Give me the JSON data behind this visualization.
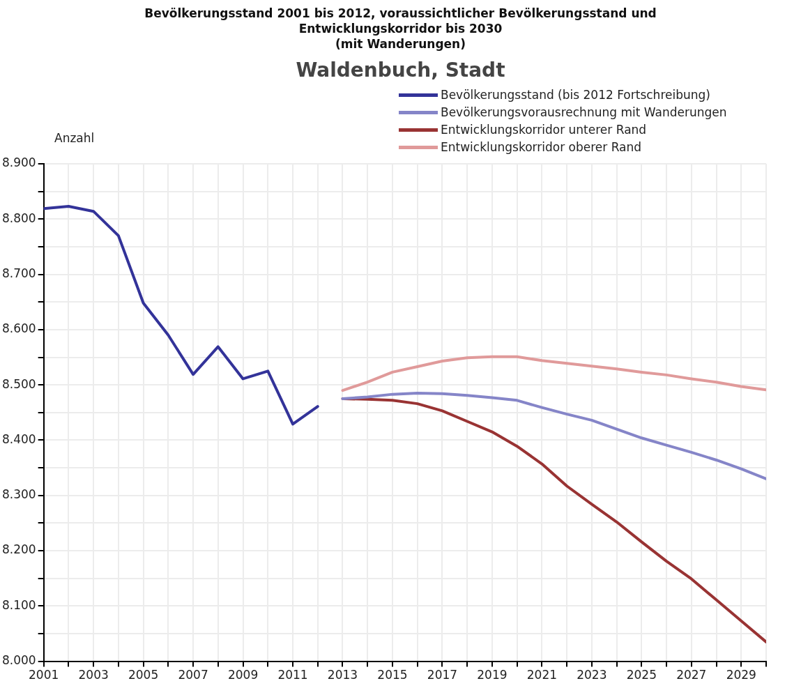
{
  "chart_data": {
    "type": "line",
    "title": "Bevölkerungsstand 2001 bis 2012, voraussichtlicher Bevölkerungsstand und\nEntwicklungskorridor bis 2030\n(mit Wanderungen)",
    "subtitle": "Waldenbuch, Stadt",
    "ylabel": "Anzahl",
    "series": [
      {
        "name": "Bevölkerungsstand (bis 2012 Fortschreibung)",
        "color": "#333399",
        "x": [
          2001,
          2002,
          2003,
          2004,
          2005,
          2006,
          2007,
          2008,
          2009,
          2010,
          2011,
          2012
        ],
        "values": [
          8819,
          8823,
          8814,
          8770,
          8648,
          8590,
          8519,
          8569,
          8511,
          8525,
          8429,
          8461
        ]
      },
      {
        "name": "Bevölkerungsvorausrechnung mit Wanderungen",
        "color": "#8585c8",
        "x": [
          2013,
          2014,
          2015,
          2016,
          2017,
          2018,
          2019,
          2020,
          2021,
          2022,
          2023,
          2024,
          2025,
          2026,
          2027,
          2028,
          2029,
          2030
        ],
        "values": [
          8475,
          8478,
          8483,
          8485,
          8484,
          8481,
          8477,
          8472,
          8459,
          8447,
          8436,
          8420,
          8404,
          8391,
          8378,
          8364,
          8348,
          8330
        ]
      },
      {
        "name": "Entwicklungskorridor unterer Rand",
        "color": "#993333",
        "x": [
          2013,
          2014,
          2015,
          2016,
          2017,
          2018,
          2019,
          2020,
          2021,
          2022,
          2023,
          2024,
          2025,
          2026,
          2027,
          2028,
          2029,
          2030
        ],
        "values": [
          8475,
          8474,
          8472,
          8466,
          8453,
          8434,
          8415,
          8389,
          8357,
          8317,
          8284,
          8252,
          8216,
          8181,
          8149,
          8111,
          8073,
          8035
        ]
      },
      {
        "name": "Entwicklungskorridor oberer Rand",
        "color": "#e09a9a",
        "x": [
          2013,
          2014,
          2015,
          2016,
          2017,
          2018,
          2019,
          2020,
          2021,
          2022,
          2023,
          2024,
          2025,
          2026,
          2027,
          2028,
          2029,
          2030
        ],
        "values": [
          8490,
          8505,
          8523,
          8533,
          8543,
          8549,
          8551,
          8551,
          8544,
          8539,
          8534,
          8529,
          8523,
          8518,
          8511,
          8505,
          8497,
          8491
        ]
      }
    ],
    "xlim": [
      2001,
      2030
    ],
    "xticks": [
      2001,
      {
        "value": 2002,
        "label": null
      },
      2003,
      {
        "value": 2004,
        "label": null
      },
      2005,
      {
        "value": 2006,
        "label": null
      },
      2007,
      {
        "value": 2008,
        "label": null
      },
      2009,
      {
        "value": 2010,
        "label": null
      },
      2011,
      {
        "value": 2012,
        "label": null
      },
      2013,
      {
        "value": 2014,
        "label": null
      },
      2015,
      {
        "value": 2016,
        "label": null
      },
      2017,
      {
        "value": 2018,
        "label": null
      },
      2019,
      {
        "value": 2020,
        "label": null
      },
      2021,
      {
        "value": 2022,
        "label": null
      },
      2023,
      {
        "value": 2024,
        "label": null
      },
      2025,
      {
        "value": 2026,
        "label": null
      },
      2027,
      {
        "value": 2028,
        "label": null
      },
      2029,
      {
        "value": 2030,
        "label": null
      }
    ],
    "ylim": [
      8000,
      8900
    ],
    "yticks": [
      {
        "value": 8000,
        "label": "8.000"
      },
      {
        "value": 8050,
        "label": null
      },
      {
        "value": 8100,
        "label": "8.100"
      },
      {
        "value": 8150,
        "label": null
      },
      {
        "value": 8200,
        "label": "8.200"
      },
      {
        "value": 8250,
        "label": null
      },
      {
        "value": 8300,
        "label": "8.300"
      },
      {
        "value": 8350,
        "label": null
      },
      {
        "value": 8400,
        "label": "8.400"
      },
      {
        "value": 8450,
        "label": null
      },
      {
        "value": 8500,
        "label": "8.500"
      },
      {
        "value": 8550,
        "label": null
      },
      {
        "value": 8600,
        "label": "8.600"
      },
      {
        "value": 8650,
        "label": null
      },
      {
        "value": 8700,
        "label": "8.700"
      },
      {
        "value": 8750,
        "label": null
      },
      {
        "value": 8800,
        "label": "8.800"
      },
      {
        "value": 8850,
        "label": null
      },
      {
        "value": 8900,
        "label": "8.900"
      }
    ],
    "grid": true,
    "legend": "top right",
    "marker": "none",
    "line_style": "solid"
  }
}
